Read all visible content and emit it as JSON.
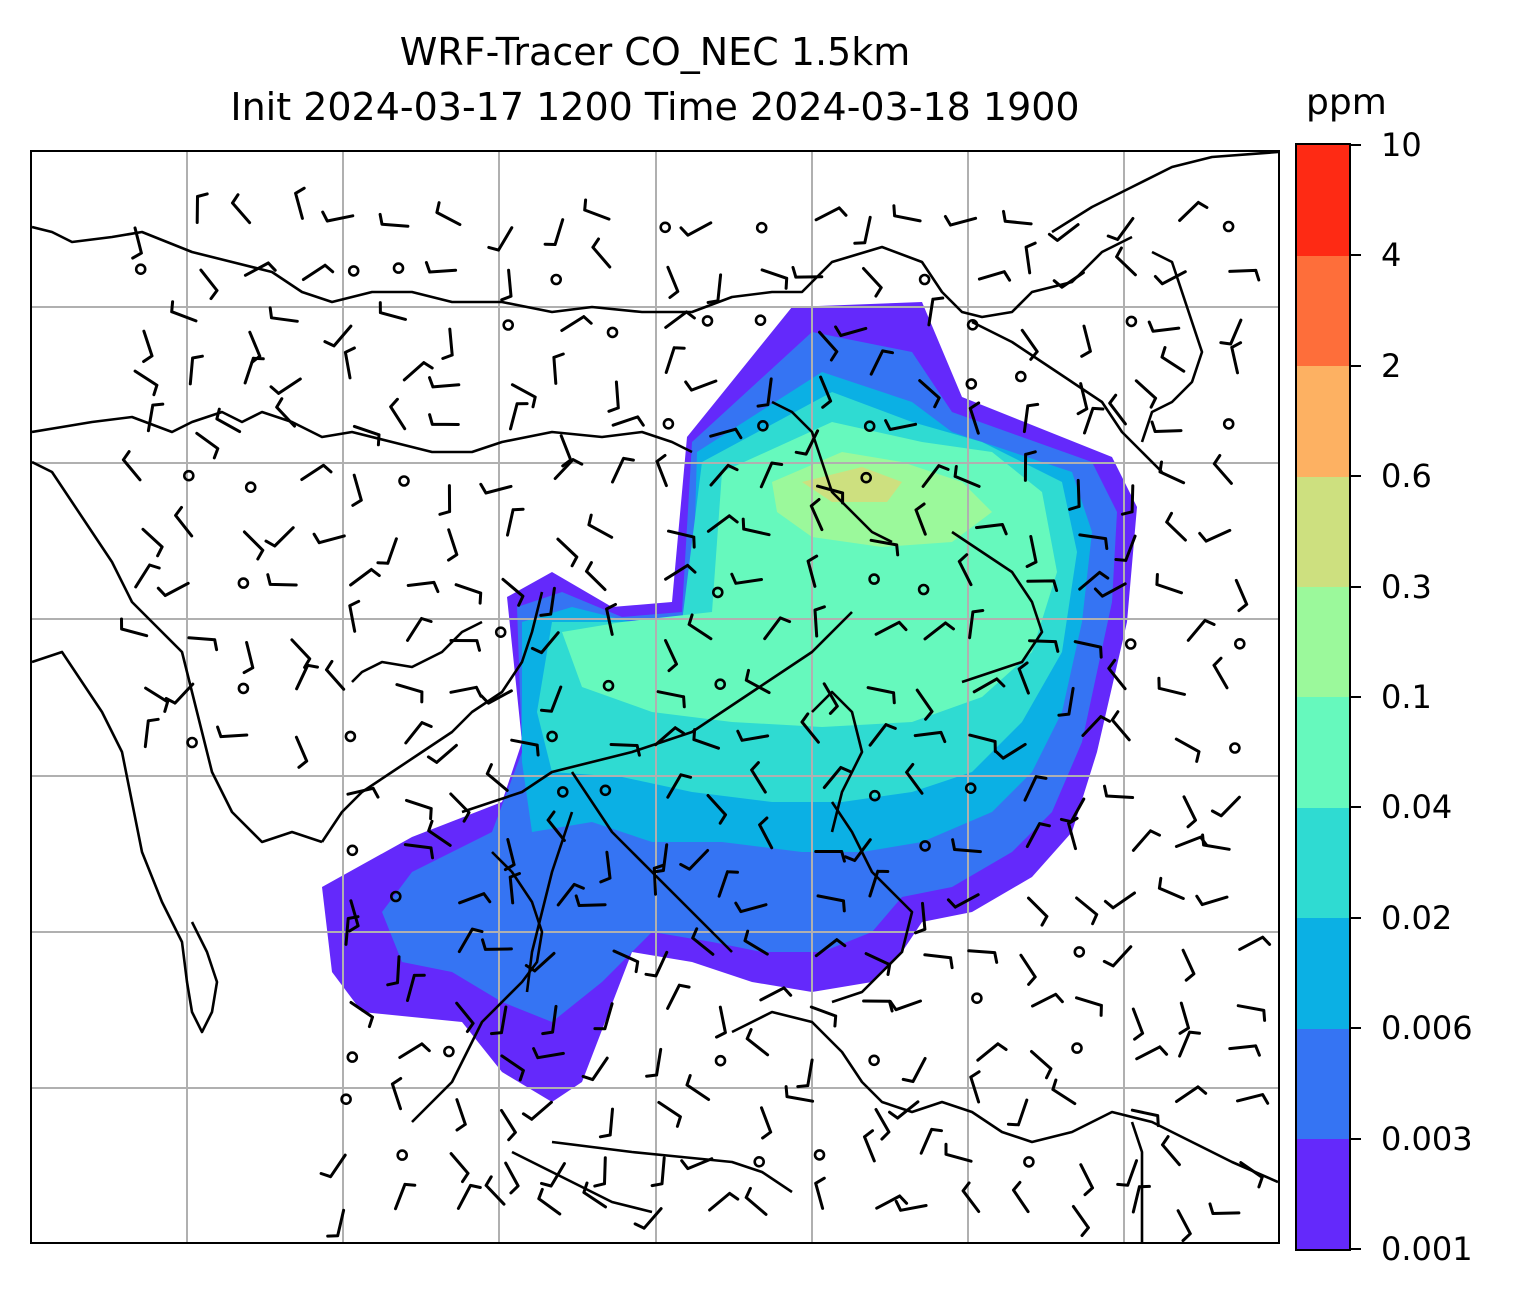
{
  "title": {
    "line1": "WRF-Tracer CO_NEC 1.5km",
    "line2": "Init 2024-03-17 1200 Time 2024-03-18 1900"
  },
  "colorbar": {
    "unit": "ppm",
    "levels": [
      "0.001",
      "0.003",
      "0.006",
      "0.02",
      "0.04",
      "0.1",
      "0.3",
      "0.6",
      "2",
      "4",
      "10"
    ],
    "colors": [
      "#6429fb",
      "#3574f3",
      "#0bb0e4",
      "#2fdbd2",
      "#66f9bd",
      "#9bf99b",
      "#cde07f",
      "#fdb162",
      "#fe6e3a",
      "#fe2a14"
    ]
  },
  "map": {
    "gridlines": true,
    "overlays": [
      "tracer-concentration-contours",
      "coastlines",
      "country-borders",
      "wind-barbs"
    ]
  }
}
